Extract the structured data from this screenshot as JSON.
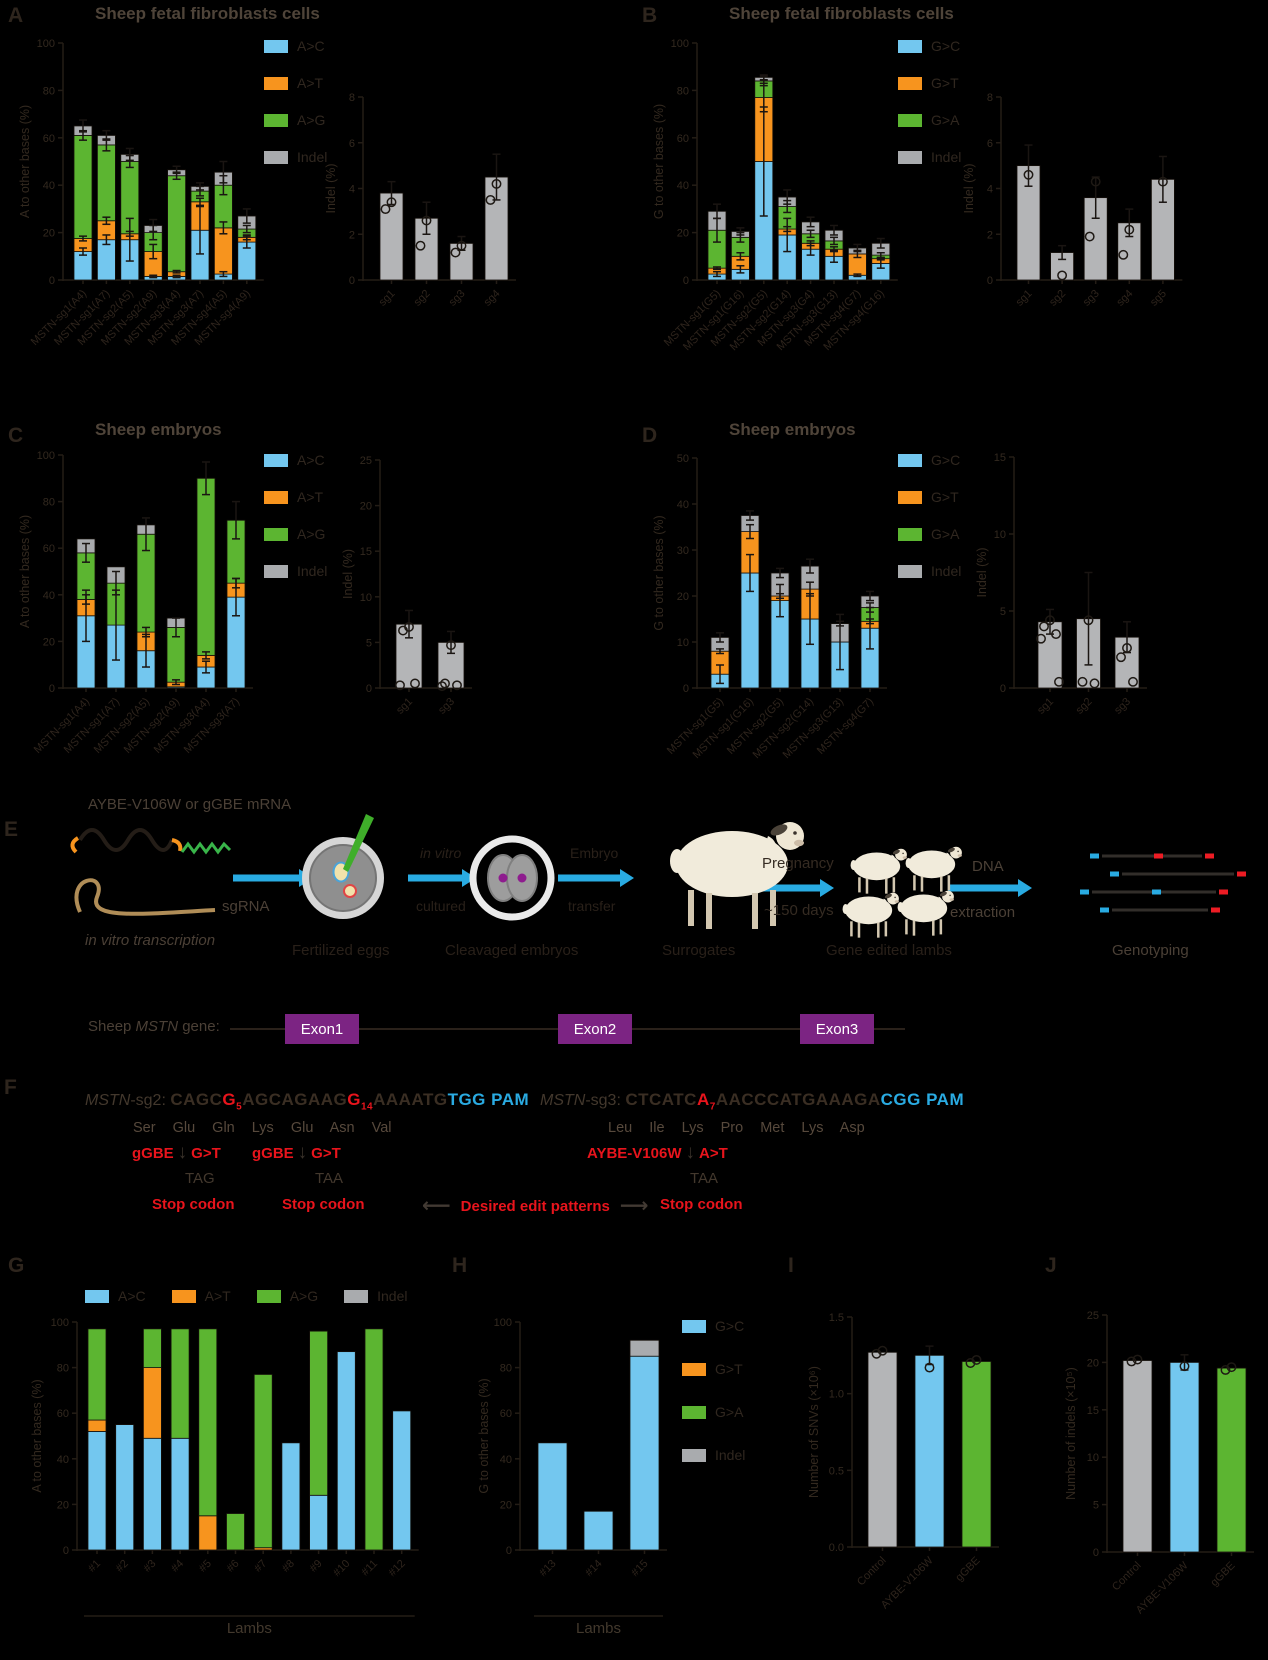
{
  "colors": {
    "blue": "#73c7ef",
    "orange": "#f7941e",
    "green": "#5cb531",
    "gray": "#a9abae",
    "gray2": "#b4b5b7",
    "red": "#e8141c",
    "seq_blue": "#2aabe2",
    "purple": "#7c2483",
    "arrow_blue": "#29abe2",
    "needle_green": "#3fae2a",
    "read_red": "#ed1c24"
  },
  "letters": {
    "a": "A",
    "b": "B",
    "c": "C",
    "d": "D",
    "e": "E",
    "f": "F",
    "g": "G",
    "h": "H",
    "i": "I",
    "j": "J"
  },
  "titles": {
    "a": "Sheep fetal fibroblasts cells",
    "b": "Sheep fetal fibroblasts cells",
    "c": "Sheep embryos",
    "d": "Sheep embryos"
  },
  "legends": {
    "acgt": [
      {
        "label": "A>C",
        "color": "blue"
      },
      {
        "label": "A>T",
        "color": "orange"
      },
      {
        "label": "A>G",
        "color": "green"
      },
      {
        "label": "Indel",
        "color": "gray"
      }
    ],
    "gcta": [
      {
        "label": "G>C",
        "color": "blue"
      },
      {
        "label": "G>T",
        "color": "orange"
      },
      {
        "label": "G>A",
        "color": "green"
      },
      {
        "label": "Indel",
        "color": "gray"
      }
    ]
  },
  "chart_data": {
    "a_main": {
      "type": "bar",
      "ylabel": "A to other bases (%)",
      "ylim": [
        0,
        100
      ],
      "yticks": [
        0,
        20,
        40,
        60,
        80,
        100
      ],
      "categories": [
        "MSTN-sg1(A4)",
        "MSTN-sg1(A7)",
        "MSTN-sg2(A5)",
        "MSTN-sg2(A9)",
        "MSTN-sg3(A4)",
        "MSTN-sg3(A7)",
        "MSTN-sg4(A5)",
        "MSTN-sg4(A9)"
      ],
      "series": [
        {
          "name": "A>C",
          "color": "blue",
          "values": [
            12,
            17,
            17,
            1.5,
            1.5,
            21,
            2.5,
            16
          ],
          "errors": [
            1.5,
            2,
            9,
            0.5,
            0.5,
            10,
            1,
            2.5
          ]
        },
        {
          "name": "A>T",
          "color": "orange",
          "values": [
            5.5,
            8,
            2.5,
            10.5,
            2,
            12,
            19.5,
            2
          ],
          "errors": [
            1,
            1.5,
            1,
            3,
            0.5,
            1.5,
            2.5,
            1
          ]
        },
        {
          "name": "A>G",
          "color": "green",
          "values": [
            43.5,
            32,
            30.5,
            8,
            40.5,
            4.5,
            18,
            3.5
          ],
          "errors": [
            2,
            2.5,
            2.5,
            3,
            1.5,
            2,
            4,
            1.5
          ]
        },
        {
          "name": "Indel",
          "color": "gray",
          "values": [
            4,
            4,
            3,
            3,
            2.5,
            2,
            5.5,
            5.5
          ],
          "errors": [
            2.5,
            2,
            2.5,
            2.5,
            1.5,
            1.5,
            4.5,
            3
          ]
        }
      ]
    },
    "a_inset": {
      "type": "bar",
      "ylabel": "Indel (%)",
      "ylim": [
        0,
        8
      ],
      "yticks": [
        0,
        2,
        4,
        6,
        8
      ],
      "categories": [
        "sg1",
        "sg2",
        "sg3",
        "sg4"
      ],
      "values": [
        3.8,
        2.7,
        1.6,
        4.5
      ],
      "errors": [
        0.5,
        0.7,
        0.3,
        1.0
      ],
      "points": [
        [
          3.4,
          3.1
        ],
        [
          2.6,
          1.5
        ],
        [
          1.5,
          1.2
        ],
        [
          4.2,
          3.5
        ]
      ]
    },
    "b_main": {
      "type": "bar",
      "ylabel": "G to other bases (%)",
      "ylim": [
        0,
        100
      ],
      "yticks": [
        0,
        20,
        40,
        60,
        80,
        100
      ],
      "categories": [
        "MSTN-sg1(G5)",
        "MSTN-sg1(G16)",
        "MSTN-sg2(G5)",
        "MSTN-sg2(G14)",
        "MSTN-sg3(G4)",
        "MSTN-sg3(G13)",
        "MSTN-sg4(G7)",
        "MSTN-sg4(G16)"
      ],
      "series": [
        {
          "name": "G>C",
          "color": "blue",
          "values": [
            2.5,
            4.5,
            50,
            19,
            13,
            10,
            2,
            7
          ],
          "errors": [
            1,
            1.5,
            23,
            7,
            2.5,
            2.5,
            0.5,
            2
          ]
        },
        {
          "name": "G>T",
          "color": "orange",
          "values": [
            2.5,
            5.5,
            27,
            2.5,
            2.5,
            3,
            9,
            2
          ],
          "errors": [
            0.5,
            1.5,
            6,
            1,
            1,
            1,
            1.5,
            0.5
          ]
        },
        {
          "name": "G>A",
          "color": "green",
          "values": [
            16,
            8,
            7,
            9.5,
            4,
            3.5,
            0,
            1.5
          ],
          "errors": [
            5,
            2,
            2,
            2.5,
            1.5,
            1.5,
            0,
            1
          ]
        },
        {
          "name": "Indel",
          "color": "gray",
          "values": [
            8,
            2.5,
            1.5,
            4,
            5,
            4.5,
            2.5,
            5
          ],
          "errors": [
            3,
            1.5,
            1,
            3,
            2,
            2,
            1.5,
            2
          ]
        }
      ]
    },
    "b_inset": {
      "type": "bar",
      "ylabel": "Indel (%)",
      "ylim": [
        0,
        8
      ],
      "yticks": [
        0,
        2,
        4,
        6,
        8
      ],
      "categories": [
        "sg1",
        "sg2",
        "sg3",
        "sg4",
        "sg5"
      ],
      "values": [
        5.0,
        1.2,
        3.6,
        2.5,
        4.4
      ],
      "errors": [
        0.9,
        0.3,
        0.9,
        0.6,
        1.0
      ],
      "points": [
        [
          4.6
        ],
        [
          0.2
        ],
        [
          4.3,
          1.9
        ],
        [
          2.2,
          1.1
        ],
        [
          4.3
        ]
      ]
    },
    "c_main": {
      "type": "bar",
      "ylabel": "A to other bases (%)",
      "ylim": [
        0,
        100
      ],
      "yticks": [
        0,
        20,
        40,
        60,
        80,
        100
      ],
      "categories": [
        "MSTN-sg1(A4)",
        "MSTN-sg1(A7)",
        "MSTN-sg2(A5)",
        "MSTN-sg2(A9)",
        "MSTN-sg3(A4)",
        "MSTN-sg3(A7)"
      ],
      "series": [
        {
          "name": "A>C",
          "color": "blue",
          "values": [
            31,
            27,
            16,
            0.5,
            9,
            39
          ],
          "errors": [
            11,
            15,
            7,
            0,
            2.5,
            8
          ]
        },
        {
          "name": "A>T",
          "color": "orange",
          "values": [
            7,
            0,
            8,
            2,
            5,
            6
          ],
          "errors": [
            2,
            0,
            2,
            1,
            1.5,
            2
          ]
        },
        {
          "name": "A>G",
          "color": "green",
          "values": [
            20,
            18,
            42,
            23.5,
            76,
            27
          ],
          "errors": [
            4,
            5,
            7,
            4,
            7,
            8
          ]
        },
        {
          "name": "Indel",
          "color": "gray",
          "values": [
            6,
            7,
            4,
            4,
            0,
            0
          ],
          "errors": [
            0,
            0,
            0,
            0,
            0,
            0
          ]
        }
      ]
    },
    "c_inset": {
      "type": "bar",
      "ylabel": "Indel (%)",
      "ylim": [
        0,
        25
      ],
      "yticks": [
        0,
        5,
        10,
        15,
        20,
        25
      ],
      "categories": [
        "sg1",
        "sg3"
      ],
      "values": [
        7,
        5
      ],
      "errors": [
        1.5,
        1.2
      ],
      "points": [
        [
          6.7,
          6.3,
          0.5,
          0.3
        ],
        [
          4.7,
          0.5,
          0.3,
          0.2
        ]
      ]
    },
    "d_main": {
      "type": "bar",
      "ylabel": "G to other bases (%)",
      "ylim": [
        0,
        50
      ],
      "yticks": [
        0,
        10,
        20,
        30,
        40,
        50
      ],
      "categories": [
        "MSTN-sg1(G5)",
        "MSTN-sg1(G16)",
        "MSTN-sg2(G5)",
        "MSTN-sg2(G14)",
        "MSTN-sg3(G13)",
        "MSTN-sg4(G7)"
      ],
      "series": [
        {
          "name": "G>C",
          "color": "blue",
          "values": [
            3,
            25,
            19,
            15,
            10,
            13
          ],
          "errors": [
            2,
            4,
            3.5,
            5.5,
            6,
            4.5
          ]
        },
        {
          "name": "G>T",
          "color": "orange",
          "values": [
            5,
            9,
            1,
            6.5,
            0,
            1.5
          ],
          "errors": [
            0.5,
            1.5,
            0.5,
            1.5,
            0,
            0.5
          ]
        },
        {
          "name": "G>A",
          "color": "green",
          "values": [
            0,
            0,
            0,
            0,
            0,
            3
          ],
          "errors": [
            0,
            0,
            0,
            0,
            0,
            1
          ]
        },
        {
          "name": "Indel",
          "color": "gray",
          "values": [
            3,
            3.5,
            5,
            5,
            4,
            2.5
          ],
          "errors": [
            1,
            1,
            1,
            1.5,
            0.5,
            1
          ]
        }
      ]
    },
    "d_inset": {
      "type": "bar",
      "ylabel": "Indel (%)",
      "ylim": [
        0,
        15
      ],
      "yticks": [
        0,
        5,
        10,
        15
      ],
      "categories": [
        "sg1",
        "sg2",
        "sg3"
      ],
      "values": [
        4.3,
        4.5,
        3.3
      ],
      "errors": [
        0.8,
        3,
        1
      ],
      "points": [
        [
          4.4,
          4.0,
          3.5,
          3.2,
          0.4
        ],
        [
          4.4,
          0.4,
          0.3
        ],
        [
          2.6,
          2.0,
          0.4
        ]
      ]
    },
    "g_main": {
      "type": "bar",
      "ylabel": "A to other bases (%)",
      "ylim": [
        0,
        100
      ],
      "yticks": [
        0,
        20,
        40,
        60,
        80,
        100
      ],
      "group_label": "Lambs",
      "categories": [
        "#1",
        "#2",
        "#3",
        "#4",
        "#5",
        "#6",
        "#7",
        "#8",
        "#9",
        "#10",
        "#11",
        "#12"
      ],
      "series": [
        {
          "name": "A>C",
          "color": "blue",
          "values": [
            52,
            55,
            49,
            49,
            0,
            0,
            0,
            47,
            24,
            87,
            0,
            61
          ]
        },
        {
          "name": "A>T",
          "color": "orange",
          "values": [
            5,
            0,
            31,
            0,
            15,
            0,
            1,
            0,
            0,
            0,
            0,
            0
          ]
        },
        {
          "name": "A>G",
          "color": "green",
          "values": [
            40,
            0,
            17,
            48,
            82,
            16,
            76,
            0,
            72,
            0,
            97,
            0
          ]
        },
        {
          "name": "Indel",
          "color": "gray",
          "values": [
            0,
            0,
            0,
            0,
            0,
            0,
            0,
            0,
            0,
            0,
            0,
            0
          ]
        }
      ]
    },
    "h_main": {
      "type": "bar",
      "ylabel": "G to other bases (%)",
      "ylim": [
        0,
        100
      ],
      "yticks": [
        0,
        20,
        40,
        60,
        80,
        100
      ],
      "group_label": "Lambs",
      "categories": [
        "#13",
        "#14",
        "#15"
      ],
      "series": [
        {
          "name": "G>C",
          "color": "blue",
          "values": [
            47,
            17,
            85
          ]
        },
        {
          "name": "G>T",
          "color": "orange",
          "values": [
            0,
            0,
            0
          ]
        },
        {
          "name": "G>A",
          "color": "green",
          "values": [
            0,
            0,
            0
          ]
        },
        {
          "name": "Indel",
          "color": "gray",
          "values": [
            0,
            0,
            7
          ]
        }
      ]
    },
    "i_main": {
      "type": "bar",
      "ylabel": "Number of SNVs (×10⁶)",
      "ylim": [
        0,
        1.5
      ],
      "yticks": [
        0,
        0.5,
        1,
        1.5
      ],
      "ytick_labels": [
        "0.0",
        "0.5",
        "1.0",
        "1.5"
      ],
      "categories": [
        "Control",
        "AYBE-V106W",
        "gGBE"
      ],
      "values": [
        1.27,
        1.25,
        1.21
      ],
      "errors": [
        0,
        0.06,
        0
      ],
      "bar_colors": [
        "gray2",
        "blue",
        "green"
      ],
      "points": [
        [
          1.28,
          1.26
        ],
        [
          1.17
        ],
        [
          1.22,
          1.2
        ]
      ]
    },
    "j_main": {
      "type": "bar",
      "ylabel": "Number of indels (×10⁵)",
      "ylim": [
        0,
        25
      ],
      "yticks": [
        0,
        5,
        10,
        15,
        20,
        25
      ],
      "categories": [
        "Control",
        "AYBE-V106W",
        "gGBE"
      ],
      "values": [
        20.2,
        20,
        19.4
      ],
      "errors": [
        0,
        0.8,
        0
      ],
      "bar_colors": [
        "gray2",
        "blue",
        "green"
      ],
      "points": [
        [
          20.3,
          20.1
        ],
        [
          19.6
        ],
        [
          19.5,
          19.2
        ]
      ]
    }
  },
  "workflow": {
    "mrna_label": "AYBE-V106W or gGBE mRNA",
    "sgrna_label": "sgRNA",
    "ivt_label": "in vitro transcription",
    "step1": "Fertilized eggs",
    "step2": "Cleavaged embryos",
    "step3": "Surrogates",
    "step4": "Gene edited lambs",
    "step5": "Genotyping",
    "arrow2a": "in vitro",
    "arrow2b": "cultured",
    "arrow3a": "Embryo",
    "arrow3b": "transfer",
    "arrow4a": "Pregnancy",
    "arrow4b": "~150 days",
    "arrow5a": "DNA",
    "arrow5b": "extraction"
  },
  "gene": {
    "prefix": "Sheep ",
    "gene": "MSTN",
    "suffix": " gene:",
    "exon1": "Exon1",
    "exon2": "Exon2",
    "exon3": "Exon3"
  },
  "sequences": {
    "sg2": {
      "name_gene": "MSTN",
      "name_rest": "-sg2: ",
      "parts": [
        {
          "t": "CAGC",
          "c": "dark"
        },
        {
          "t": "G",
          "c": "red",
          "sub": "5"
        },
        {
          "t": "AGCAGAAG",
          "c": "dark"
        },
        {
          "t": "G",
          "c": "red",
          "sub": "14"
        },
        {
          "t": "AAAATG",
          "c": "dark"
        },
        {
          "t": "TGG PAM",
          "c": "blue"
        }
      ],
      "aa": "Ser Glu Gln Lys Glu Asn Val",
      "edits": [
        {
          "tool": "gGBE",
          "change": "G>T"
        },
        {
          "tool": "gGBE",
          "change": "G>T"
        }
      ],
      "codon1": "TAG",
      "codon2": "TAA",
      "stop": "Stop codon"
    },
    "sg3": {
      "name_gene": "MSTN",
      "name_rest": "-sg3: ",
      "parts": [
        {
          "t": "CTCATC",
          "c": "dark"
        },
        {
          "t": "A",
          "c": "red",
          "sub": "7"
        },
        {
          "t": "AACCCATGAAAGA",
          "c": "dark"
        },
        {
          "t": "CGG PAM",
          "c": "blue"
        }
      ],
      "aa": "Leu Ile Lys Pro Met Lys Asp",
      "edits": [
        {
          "tool": "AYBE-V106W",
          "change": "A>T"
        }
      ],
      "codon1": "TAA",
      "stop": "Stop codon"
    },
    "desired": "Desired edit patterns"
  }
}
